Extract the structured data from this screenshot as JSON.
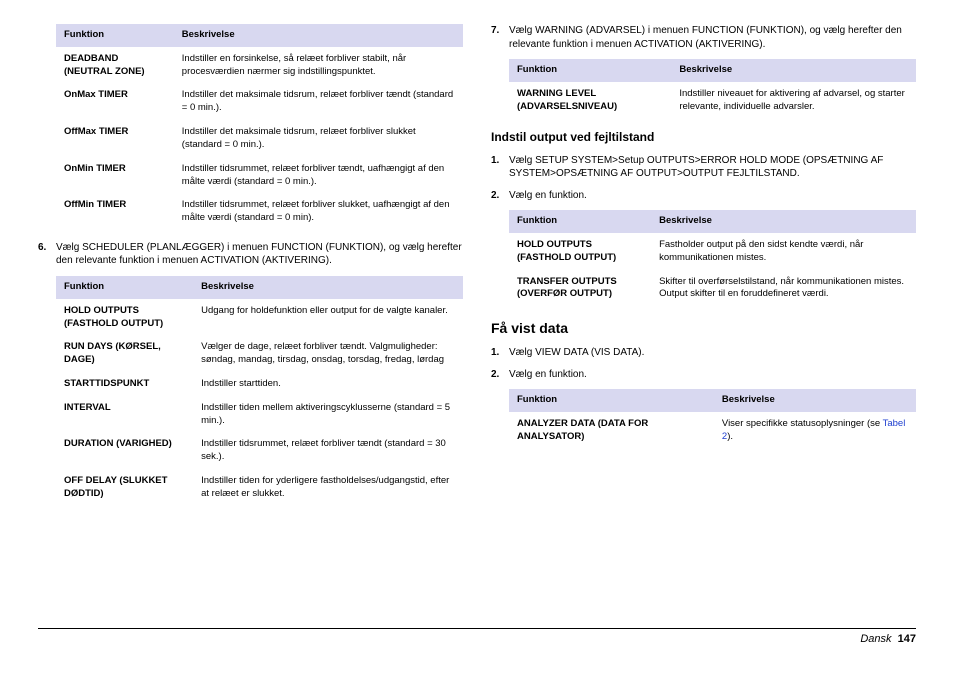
{
  "colors": {
    "header_bg": "#d8d8f0",
    "link": "#2040d0",
    "rule": "#000000"
  },
  "left": {
    "table1": {
      "head": [
        "Funktion",
        "Beskrivelse"
      ],
      "rows": [
        [
          "DEADBAND (NEUTRAL ZONE)",
          "Indstiller en forsinkelse, så relæet forbliver stabilt, når procesværdien nærmer sig indstillingspunktet."
        ],
        [
          "OnMax TIMER",
          "Indstiller det maksimale tidsrum, relæet forbliver tændt (standard = 0 min.)."
        ],
        [
          "OffMax TIMER",
          "Indstiller det maksimale tidsrum, relæet forbliver slukket (standard = 0 min.)."
        ],
        [
          "OnMin TIMER",
          "Indstiller tidsrummet, relæet forbliver tændt, uafhængigt af den målte værdi (standard = 0 min.)."
        ],
        [
          "OffMin TIMER",
          "Indstiller tidsrummet, relæet forbliver slukket, uafhængigt af den målte værdi (standard = 0 min)."
        ]
      ]
    },
    "step6_num": "6.",
    "step6_txt": "Vælg SCHEDULER (PLANLÆGGER) i menuen FUNCTION (FUNKTION), og vælg herefter den relevante funktion i menuen ACTIVATION (AKTIVERING).",
    "table2": {
      "head": [
        "Funktion",
        "Beskrivelse"
      ],
      "rows": [
        [
          "HOLD OUTPUTS (FASTHOLD OUTPUT)",
          "Udgang for holdefunktion eller output for de valgte kanaler."
        ],
        [
          "RUN DAYS (KØRSEL, DAGE)",
          "Vælger de dage, relæet forbliver tændt. Valgmuligheder: søndag, mandag, tirsdag, onsdag, torsdag, fredag, lørdag"
        ],
        [
          "STARTTIDSPUNKT",
          "Indstiller starttiden."
        ],
        [
          "INTERVAL",
          "Indstiller tiden mellem aktiveringscyklusserne (standard = 5 min.)."
        ],
        [
          "DURATION (VARIGHED)",
          "Indstiller tidsrummet, relæet forbliver tændt (standard = 30 sek.)."
        ],
        [
          "OFF DELAY (SLUKKET DØDTID)",
          "Indstiller tiden for yderligere fastholdelses/udgangstid, efter at relæet er slukket."
        ]
      ]
    }
  },
  "right": {
    "step7_num": "7.",
    "step7_txt": "Vælg WARNING (ADVARSEL) i menuen FUNCTION (FUNKTION), og vælg herefter den relevante funktion i menuen ACTIVATION (AKTIVERING).",
    "table3": {
      "head": [
        "Funktion",
        "Beskrivelse"
      ],
      "rows": [
        [
          "WARNING LEVEL (ADVARSELSNIVEAU)",
          "Indstiller niveauet for aktivering af advarsel, og starter relevante, individuelle advarsler."
        ]
      ]
    },
    "sec1": "Indstil output ved fejltilstand",
    "s1_num": "1.",
    "s1_txt": "Vælg SETUP SYSTEM>Setup OUTPUTS>ERROR HOLD MODE (OPSÆTNING AF SYSTEM>OPSÆTNING AF OUTPUT>OUTPUT FEJLTILSTAND.",
    "s2_num": "2.",
    "s2_txt": "Vælg en funktion.",
    "table4": {
      "head": [
        "Funktion",
        "Beskrivelse"
      ],
      "rows": [
        [
          "HOLD OUTPUTS (FASTHOLD OUTPUT)",
          "Fastholder output på den sidst kendte værdi, når kommunikationen mistes."
        ],
        [
          "TRANSFER OUTPUTS (OVERFØR OUTPUT)",
          "Skifter til overførselstilstand, når kommunikationen mistes. Output skifter til en foruddefineret værdi."
        ]
      ]
    },
    "sec2": "Få vist data",
    "v1_num": "1.",
    "v1_txt": "Vælg VIEW DATA (VIS DATA).",
    "v2_num": "2.",
    "v2_txt": "Vælg en funktion.",
    "table5": {
      "head": [
        "Funktion",
        "Beskrivelse"
      ],
      "rows": [
        [
          "ANALYZER DATA (DATA FOR ANALYSATOR)",
          "Viser specifikke statusoplysninger (se "
        ]
      ],
      "link": "Tabel 2",
      "after": ")."
    }
  },
  "footer": {
    "lang": "Dansk",
    "page": "147"
  }
}
